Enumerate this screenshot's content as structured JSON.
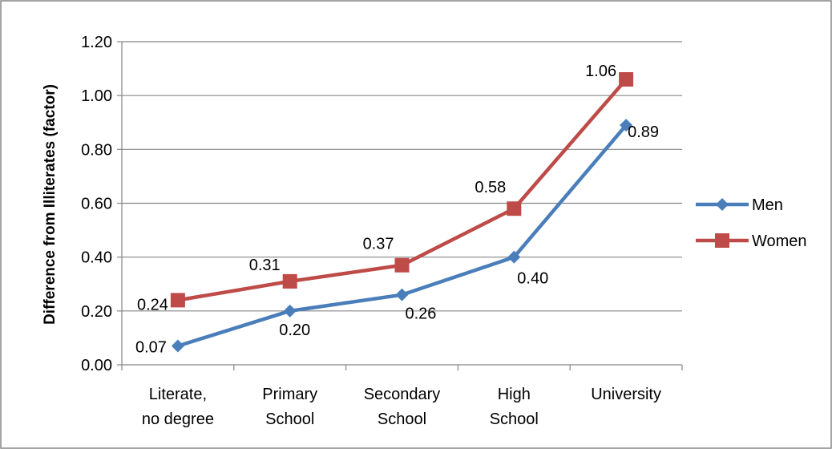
{
  "chart_data": {
    "type": "line",
    "categories": [
      [
        "Literate,",
        "no degree"
      ],
      [
        "Primary",
        "School"
      ],
      [
        "Secondary",
        "School"
      ],
      [
        "High",
        "School"
      ],
      [
        "University"
      ]
    ],
    "ylabel": "Difference from Illiterates (factor)",
    "ylim": [
      0,
      1.2
    ],
    "yticks": [
      "0.00",
      "0.20",
      "0.40",
      "0.60",
      "0.80",
      "1.00",
      "1.20"
    ],
    "grid": true,
    "legend_position": "right",
    "series": [
      {
        "name": "Men",
        "color": "#4a7ebb",
        "marker": "diamond",
        "values": [
          0.07,
          0.2,
          0.26,
          0.4,
          0.89
        ],
        "labels": [
          "0.07",
          "0.20",
          "0.26",
          "0.40",
          "0.89"
        ]
      },
      {
        "name": "Women",
        "color": "#be4b48",
        "marker": "square",
        "values": [
          0.24,
          0.31,
          0.37,
          0.58,
          1.06
        ],
        "labels": [
          "0.24",
          "0.31",
          "0.37",
          "0.58",
          "1.06"
        ]
      }
    ]
  }
}
